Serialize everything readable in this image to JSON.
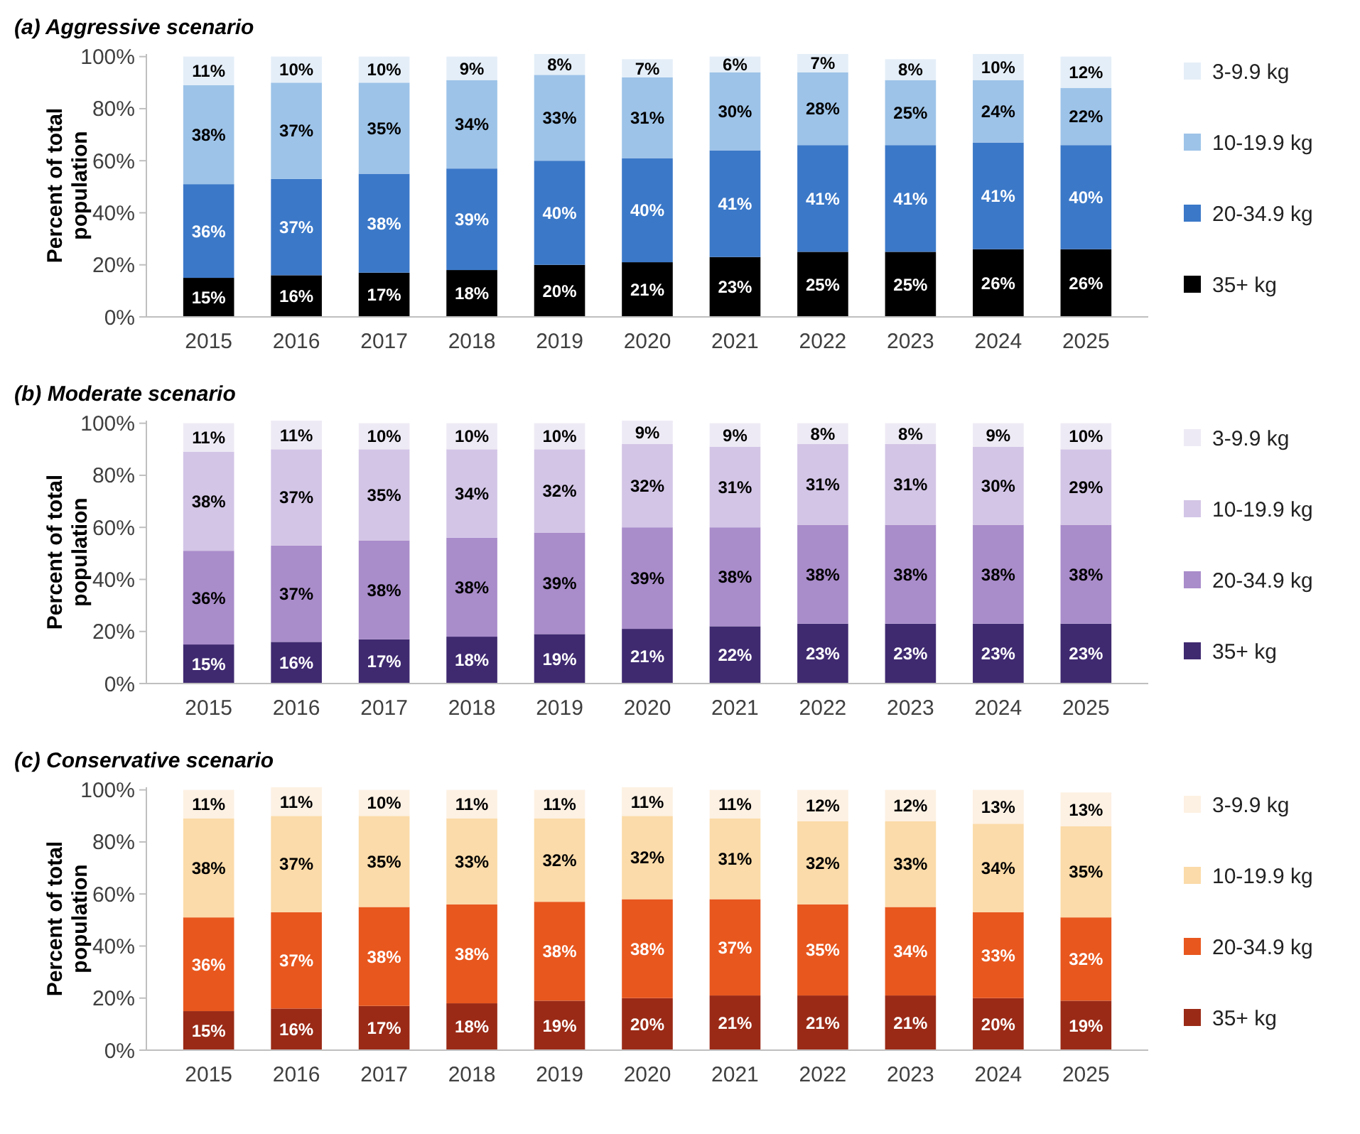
{
  "chart_data": [
    {
      "type": "bar",
      "stacked": true,
      "title": "(a) Aggressive scenario",
      "ylabel": "Percent of total population",
      "categories": [
        "2015",
        "2016",
        "2017",
        "2018",
        "2019",
        "2020",
        "2021",
        "2022",
        "2023",
        "2024",
        "2025"
      ],
      "ylim": [
        0,
        101
      ],
      "yticks": [
        {
          "value": 0,
          "label": "0%"
        },
        {
          "value": 20,
          "label": "20%"
        },
        {
          "value": 40,
          "label": "40%"
        },
        {
          "value": 60,
          "label": "60%"
        },
        {
          "value": 80,
          "label": "80%"
        },
        {
          "value": 100,
          "label": "100%"
        }
      ],
      "legend": "right",
      "grid": false,
      "series": [
        {
          "name": "35+ kg",
          "color": "#000000",
          "values": [
            15,
            16,
            17,
            18,
            20,
            21,
            23,
            25,
            25,
            26,
            26
          ],
          "value_labels": [
            "15%",
            "16%",
            "17%",
            "18%",
            "20%",
            "21%",
            "23%",
            "25%",
            "25%",
            "26%",
            "26%"
          ]
        },
        {
          "name": "20-34.9 kg",
          "color": "#3b78c8",
          "values": [
            36,
            37,
            38,
            39,
            40,
            40,
            41,
            41,
            41,
            41,
            40
          ],
          "value_labels": [
            "36%",
            "37%",
            "38%",
            "39%",
            "40%",
            "40%",
            "41%",
            "41%",
            "41%",
            "41%",
            "40%"
          ]
        },
        {
          "name": "10-19.9 kg",
          "color": "#9dc3e8",
          "values": [
            38,
            37,
            35,
            34,
            33,
            31,
            30,
            28,
            25,
            24,
            22
          ],
          "value_labels": [
            "38%",
            "37%",
            "35%",
            "34%",
            "33%",
            "31%",
            "30%",
            "28%",
            "25%",
            "24%",
            "22%"
          ]
        },
        {
          "name": "3-9.9 kg",
          "color": "#e4eef8",
          "values": [
            11,
            10,
            10,
            9,
            8,
            7,
            6,
            7,
            8,
            10,
            12
          ],
          "value_labels": [
            "11%",
            "10%",
            "10%",
            "9%",
            "8%",
            "7%",
            "6%",
            "7%",
            "8%",
            "10%",
            "12%"
          ]
        }
      ]
    },
    {
      "type": "bar",
      "stacked": true,
      "title": "(b) Moderate scenario",
      "ylabel": "Percent of total population",
      "categories": [
        "2015",
        "2016",
        "2017",
        "2018",
        "2019",
        "2020",
        "2021",
        "2022",
        "2023",
        "2024",
        "2025"
      ],
      "ylim": [
        0,
        101
      ],
      "yticks": [
        {
          "value": 0,
          "label": "0%"
        },
        {
          "value": 20,
          "label": "20%"
        },
        {
          "value": 40,
          "label": "40%"
        },
        {
          "value": 60,
          "label": "60%"
        },
        {
          "value": 80,
          "label": "80%"
        },
        {
          "value": 100,
          "label": "100%"
        }
      ],
      "legend": "right",
      "grid": false,
      "series": [
        {
          "name": "35+ kg",
          "color": "#3f2a70",
          "values": [
            15,
            16,
            17,
            18,
            19,
            21,
            22,
            23,
            23,
            23,
            23
          ],
          "value_labels": [
            "15%",
            "16%",
            "17%",
            "18%",
            "19%",
            "21%",
            "22%",
            "23%",
            "23%",
            "23%",
            "23%"
          ]
        },
        {
          "name": "20-34.9 kg",
          "color": "#a98cca",
          "values": [
            36,
            37,
            38,
            38,
            39,
            39,
            38,
            38,
            38,
            38,
            38
          ],
          "value_labels": [
            "36%",
            "37%",
            "38%",
            "38%",
            "39%",
            "39%",
            "38%",
            "38%",
            "38%",
            "38%",
            "38%"
          ]
        },
        {
          "name": "10-19.9 kg",
          "color": "#d3c5e6",
          "values": [
            38,
            37,
            35,
            34,
            32,
            32,
            31,
            31,
            31,
            30,
            29
          ],
          "value_labels": [
            "38%",
            "37%",
            "35%",
            "34%",
            "32%",
            "32%",
            "31%",
            "31%",
            "31%",
            "30%",
            "29%"
          ]
        },
        {
          "name": "3-9.9 kg",
          "color": "#eeeaf5",
          "values": [
            11,
            11,
            10,
            10,
            10,
            9,
            9,
            8,
            8,
            9,
            10
          ],
          "value_labels": [
            "11%",
            "11%",
            "10%",
            "10%",
            "10%",
            "9%",
            "9%",
            "8%",
            "8%",
            "9%",
            "10%"
          ]
        }
      ]
    },
    {
      "type": "bar",
      "stacked": true,
      "title": "(c) Conservative scenario",
      "ylabel": "Percent of total population",
      "categories": [
        "2015",
        "2016",
        "2017",
        "2018",
        "2019",
        "2020",
        "2021",
        "2022",
        "2023",
        "2024",
        "2025"
      ],
      "ylim": [
        0,
        101
      ],
      "yticks": [
        {
          "value": 0,
          "label": "0%"
        },
        {
          "value": 20,
          "label": "20%"
        },
        {
          "value": 40,
          "label": "40%"
        },
        {
          "value": 60,
          "label": "60%"
        },
        {
          "value": 80,
          "label": "80%"
        },
        {
          "value": 100,
          "label": "100%"
        }
      ],
      "legend": "right",
      "grid": false,
      "series": [
        {
          "name": "35+ kg",
          "color": "#9a2a16",
          "values": [
            15,
            16,
            17,
            18,
            19,
            20,
            21,
            21,
            21,
            20,
            19
          ],
          "value_labels": [
            "15%",
            "16%",
            "17%",
            "18%",
            "19%",
            "20%",
            "21%",
            "21%",
            "21%",
            "20%",
            "19%"
          ]
        },
        {
          "name": "20-34.9 kg",
          "color": "#e8571e",
          "values": [
            36,
            37,
            38,
            38,
            38,
            38,
            37,
            35,
            34,
            33,
            32
          ],
          "value_labels": [
            "36%",
            "37%",
            "38%",
            "38%",
            "38%",
            "38%",
            "37%",
            "35%",
            "34%",
            "33%",
            "32%"
          ]
        },
        {
          "name": "10-19.9 kg",
          "color": "#fbdba9",
          "values": [
            38,
            37,
            35,
            33,
            32,
            32,
            31,
            32,
            33,
            34,
            35
          ],
          "value_labels": [
            "38%",
            "37%",
            "35%",
            "33%",
            "32%",
            "32%",
            "31%",
            "32%",
            "33%",
            "34%",
            "35%"
          ]
        },
        {
          "name": "3-9.9 kg",
          "color": "#fdf1e3",
          "values": [
            11,
            11,
            10,
            11,
            11,
            11,
            11,
            12,
            12,
            13,
            13
          ],
          "value_labels": [
            "11%",
            "11%",
            "10%",
            "11%",
            "11%",
            "11%",
            "11%",
            "12%",
            "12%",
            "13%",
            "13%"
          ]
        }
      ]
    }
  ]
}
